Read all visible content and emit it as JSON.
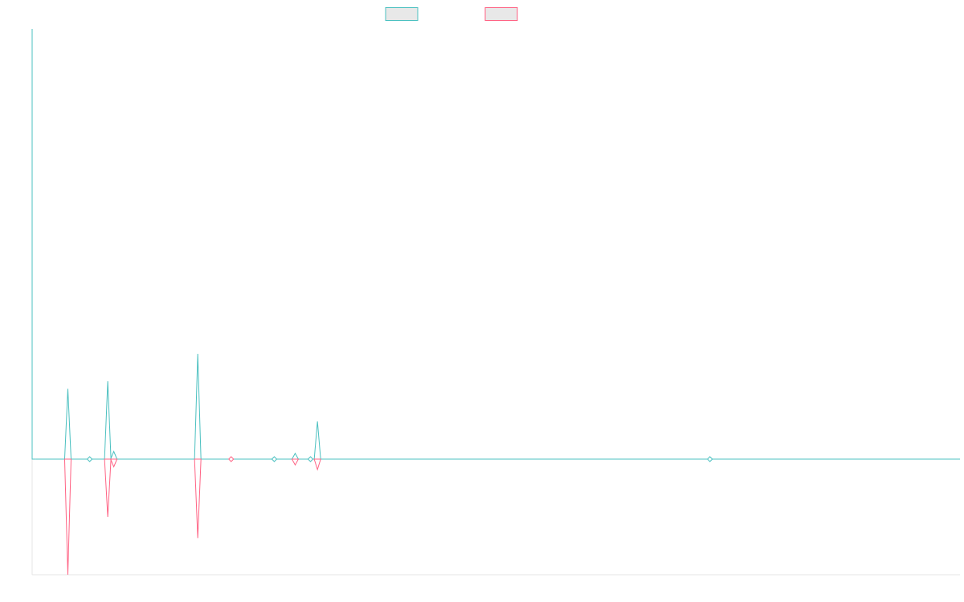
{
  "chart_data": {
    "type": "line",
    "title": "",
    "xlabel": "",
    "ylabel": "",
    "legend": {
      "placement": "top-center"
    },
    "grid": false,
    "ylim": [
      -3,
      11.2
    ],
    "series": [
      {
        "color": "#4bc0c0",
        "points": [
          {
            "x": 0,
            "y": 11.2
          },
          {
            "x": 0.04,
            "y": 0
          },
          {
            "x": 0.385,
            "y": 1.83
          },
          {
            "x": 0.735,
            "y": 0
          },
          {
            "x": 0.815,
            "y": 2.03
          },
          {
            "x": 0.88,
            "y": 0.2
          },
          {
            "x": 1.785,
            "y": 2.74
          },
          {
            "x": 2.145,
            "y": 0
          },
          {
            "x": 2.835,
            "y": 0.15
          },
          {
            "x": 3.075,
            "y": 0.98
          },
          {
            "x": 3.0,
            "y": 0
          },
          {
            "x": 7.305,
            "y": 0
          },
          {
            "x": 10.0,
            "y": 0
          }
        ]
      },
      {
        "color": "#ff6384",
        "points": [
          {
            "x": 0.385,
            "y": -3.0
          },
          {
            "x": 0.815,
            "y": -1.5
          },
          {
            "x": 0.88,
            "y": -0.2
          },
          {
            "x": 1.785,
            "y": -2.05
          },
          {
            "x": 2.835,
            "y": -0.15
          },
          {
            "x": 3.075,
            "y": -0.27
          }
        ]
      }
    ]
  }
}
